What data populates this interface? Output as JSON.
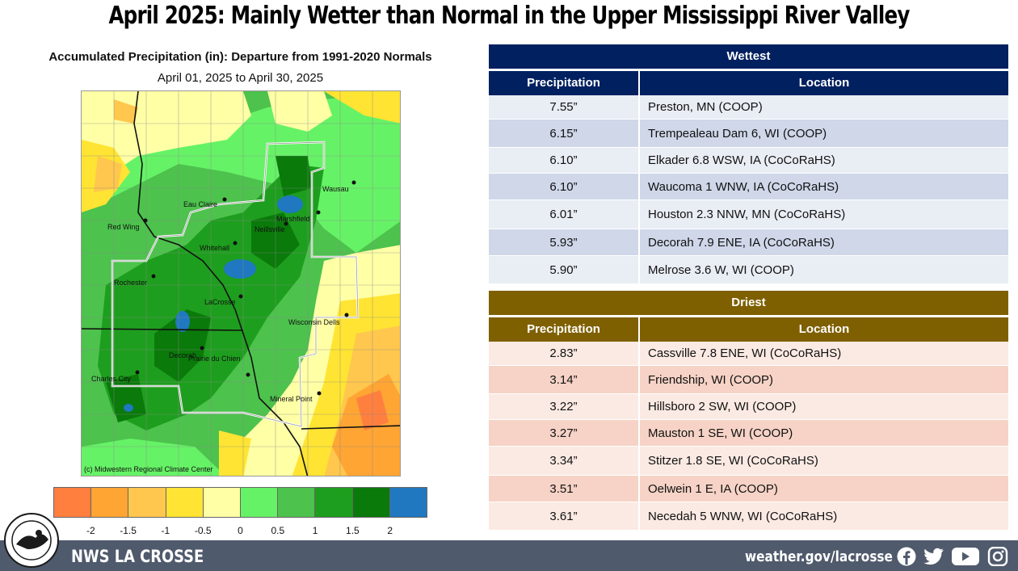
{
  "title": "April 2025: Mainly Wetter than Normal in the Upper Mississippi River Valley",
  "map": {
    "title": "Accumulated Precipitation (in): Departure from 1991-2020 Normals",
    "subtitle": "April 01, 2025 to April 30, 2025",
    "credit": "(c) Midwestern Regional Climate Center",
    "cities": [
      {
        "name": "Eau Claire"
      },
      {
        "name": "Wausau"
      },
      {
        "name": "Marshfield"
      },
      {
        "name": "Neillsville"
      },
      {
        "name": "Red Wing"
      },
      {
        "name": "Whitehall"
      },
      {
        "name": "Rochester"
      },
      {
        "name": "LaCrosse"
      },
      {
        "name": "Wisconsin Dells"
      },
      {
        "name": "Decorah"
      },
      {
        "name": "Charles City"
      },
      {
        "name": "Prairie du Chien"
      },
      {
        "name": "Mineral Point"
      }
    ],
    "legend": {
      "colors": [
        "#ff7f3f",
        "#ffa533",
        "#ffc74d",
        "#ffe433",
        "#ffffa6",
        "#66f266",
        "#4dc24d",
        "#1e9e1e",
        "#0a7a0a",
        "#1f78c0"
      ],
      "ticks": [
        "-2",
        "-1.5",
        "-1",
        "-0.5",
        "0",
        "0.5",
        "1",
        "1.5",
        "2"
      ]
    }
  },
  "wettest": {
    "header": "Wettest",
    "col_precip": "Precipitation",
    "col_location": "Location",
    "header_color": "#002060",
    "row_colors": [
      "#e9edf4",
      "#cfd7e9"
    ],
    "rows": [
      {
        "precip": "7.55”",
        "location": "Preston, MN (COOP)"
      },
      {
        "precip": "6.15”",
        "location": "Trempealeau Dam 6, WI (COOP)"
      },
      {
        "precip": "6.10”",
        "location": "Elkader 6.8 WSW, IA (CoCoRaHS)"
      },
      {
        "precip": "6.10”",
        "location": "Waucoma 1 WNW, IA (CoCoRaHS)"
      },
      {
        "precip": "6.01”",
        "location": "Houston 2.3 NNW, MN (CoCoRaHS)"
      },
      {
        "precip": "5.93”",
        "location": "Decorah 7.9 ENE, IA (CoCoRaHS)"
      },
      {
        "precip": "5.90”",
        "location": "Melrose 3.6 W, WI (COOP)"
      }
    ]
  },
  "driest": {
    "header": "Driest",
    "col_precip": "Precipitation",
    "col_location": "Location",
    "header_color": "#7f6000",
    "row_colors": [
      "#fbeae3",
      "#f6d3c6"
    ],
    "rows": [
      {
        "precip": "2.83”",
        "location": "Cassville 7.8 ENE, WI (CoCoRaHS)"
      },
      {
        "precip": "3.14”",
        "location": "Friendship, WI (COOP)"
      },
      {
        "precip": "3.22”",
        "location": "Hillsboro 2 SW, WI (COOP)"
      },
      {
        "precip": "3.27”",
        "location": "Mauston 1 SE, WI (COOP)"
      },
      {
        "precip": "3.34”",
        "location": "Stitzer 1.8 SE, WI (CoCoRaHS)"
      },
      {
        "precip": "3.51”",
        "location": "Oelwein 1 E, IA (COOP)"
      },
      {
        "precip": "3.61”",
        "location": "Necedah 5 WNW, WI (CoCoRaHS)"
      }
    ]
  },
  "footer": {
    "name": "NWS LA CROSSE",
    "url": "weather.gov/lacrosse",
    "logo_text": "NATIONAL WEATHER SERVICE",
    "logo_subtext": "LA CROSSE, WI",
    "social": [
      "facebook-icon",
      "twitter-icon",
      "youtube-icon",
      "instagram-icon"
    ],
    "bg_color": "#4f5a6c"
  }
}
